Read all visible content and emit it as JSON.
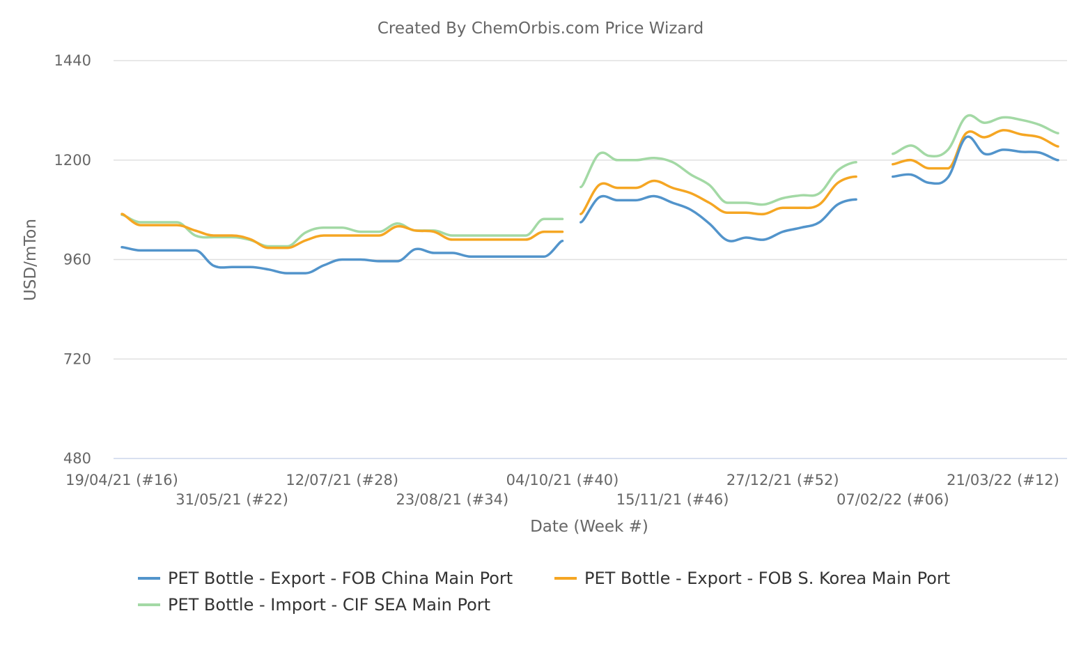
{
  "chart_data": {
    "type": "line",
    "title": "Created By ChemOrbis.com Price Wizard",
    "xlabel": "Date (Week #)",
    "ylabel": "USD/mTon",
    "ylim": [
      480,
      1440
    ],
    "yticks": [
      "480",
      "720",
      "960",
      "1200",
      "1440"
    ],
    "grid": true,
    "legend_position": "bottom",
    "x_week_range": [
      0,
      51
    ],
    "x_tick_labels": [
      {
        "label": "19/04/21 (#16)",
        "week": 0
      },
      {
        "label": "31/05/21 (#22)",
        "week": 6
      },
      {
        "label": "12/07/21 (#28)",
        "week": 12
      },
      {
        "label": "23/08/21 (#34)",
        "week": 18
      },
      {
        "label": "04/10/21 (#40)",
        "week": 24
      },
      {
        "label": "15/11/21 (#46)",
        "week": 30
      },
      {
        "label": "27/12/21 (#52)",
        "week": 36
      },
      {
        "label": "07/02/22 (#06)",
        "week": 42
      },
      {
        "label": "21/03/22 (#12)",
        "week": 48
      }
    ],
    "series": [
      {
        "name": "PET Bottle - Export - FOB China Main Port",
        "color": "#5294cb",
        "segments": [
          {
            "start_week": 0,
            "values": [
              990,
              982,
              982,
              982,
              982,
              945,
              942,
              942,
              936,
              927,
              927,
              946,
              960,
              960,
              956,
              956,
              985,
              976,
              976,
              967,
              967,
              967,
              967,
              967,
              1005
            ]
          },
          {
            "start_week": 25,
            "values": [
              1050,
              1110,
              1103,
              1103,
              1113,
              1097,
              1080,
              1047,
              1006,
              1013,
              1008,
              1027,
              1037,
              1050,
              1093,
              1105
            ]
          },
          {
            "start_week": 42,
            "values": [
              1160,
              1165,
              1145,
              1158,
              1255,
              1215,
              1225,
              1220,
              1218,
              1200
            ]
          }
        ]
      },
      {
        "name": "PET Bottle - Export - FOB S. Korea Main Port",
        "color": "#f5a623",
        "segments": [
          {
            "start_week": 0,
            "values": [
              1070,
              1043,
              1043,
              1043,
              1030,
              1018,
              1018,
              1009,
              988,
              988,
              1006,
              1018,
              1018,
              1018,
              1018,
              1040,
              1030,
              1027,
              1008,
              1008,
              1008,
              1008,
              1008,
              1027,
              1027
            ]
          },
          {
            "start_week": 25,
            "values": [
              1070,
              1140,
              1133,
              1133,
              1150,
              1133,
              1120,
              1097,
              1073,
              1073,
              1070,
              1085,
              1085,
              1093,
              1145,
              1160
            ]
          },
          {
            "start_week": 42,
            "values": [
              1190,
              1200,
              1180,
              1180,
              1265,
              1255,
              1272,
              1262,
              1255,
              1233
            ]
          }
        ]
      },
      {
        "name": "PET Bottle - Import - CIF SEA Main Port",
        "color": "#a3d9a5",
        "segments": [
          {
            "start_week": 0,
            "values": [
              1068,
              1050,
              1050,
              1050,
              1018,
              1014,
              1014,
              1007,
              992,
              992,
              1025,
              1037,
              1037,
              1027,
              1027,
              1047,
              1030,
              1030,
              1018,
              1018,
              1018,
              1018,
              1018,
              1058,
              1058
            ]
          },
          {
            "start_week": 25,
            "values": [
              1135,
              1215,
              1200,
              1200,
              1205,
              1195,
              1165,
              1140,
              1097,
              1097,
              1093,
              1108,
              1115,
              1120,
              1175,
              1195
            ]
          },
          {
            "start_week": 42,
            "values": [
              1215,
              1235,
              1210,
              1225,
              1305,
              1290,
              1303,
              1297,
              1285,
              1265
            ]
          }
        ]
      }
    ]
  }
}
